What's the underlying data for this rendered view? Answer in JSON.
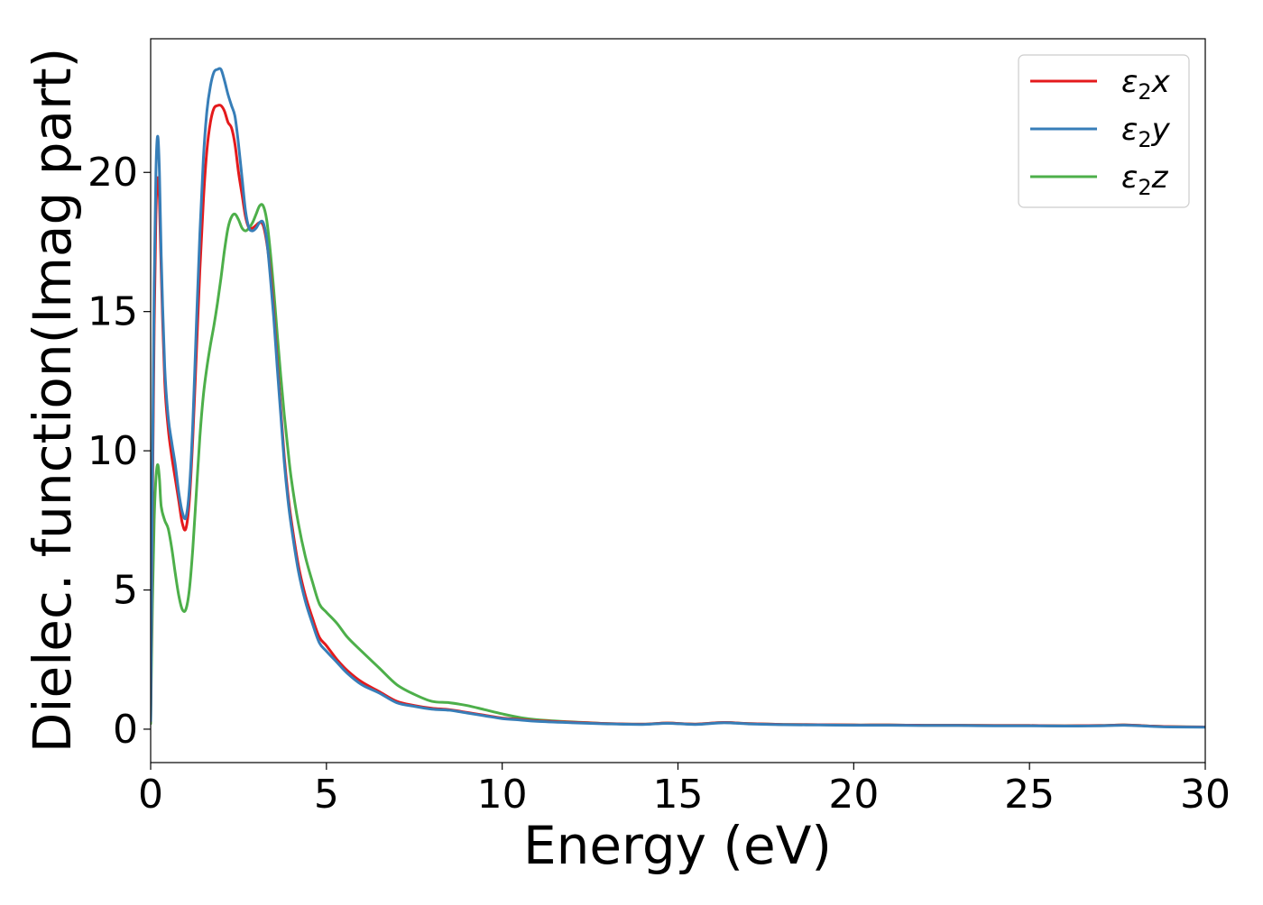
{
  "chart_data": {
    "type": "line",
    "title": "",
    "xlabel": "Energy (eV)",
    "ylabel": "Dielec. function(Imag part)",
    "xlim": [
      0,
      30
    ],
    "ylim": [
      -1.2,
      24.8
    ],
    "xticks": [
      0,
      5,
      10,
      15,
      20,
      25,
      30
    ],
    "yticks": [
      0,
      5,
      10,
      15,
      20
    ],
    "xtick_labels": [
      "0",
      "5",
      "10",
      "15",
      "20",
      "25",
      "30"
    ],
    "ytick_labels": [
      "0",
      "5",
      "10",
      "15",
      "20"
    ],
    "grid": false,
    "legend_position": "top-right",
    "series": [
      {
        "name": "ε₂x",
        "legend": {
          "base": "ε",
          "sub": "2",
          "suffix": "x"
        },
        "color": "#e41a1c",
        "x": [
          0,
          0.05,
          0.1,
          0.15,
          0.2,
          0.25,
          0.3,
          0.4,
          0.5,
          0.6,
          0.7,
          0.8,
          0.9,
          1.0,
          1.1,
          1.2,
          1.3,
          1.4,
          1.5,
          1.6,
          1.7,
          1.8,
          1.9,
          2.0,
          2.1,
          2.2,
          2.3,
          2.4,
          2.5,
          2.6,
          2.7,
          2.8,
          2.9,
          3.0,
          3.1,
          3.2,
          3.3,
          3.4,
          3.5,
          3.6,
          3.7,
          3.8,
          3.9,
          4.0,
          4.2,
          4.4,
          4.6,
          4.8,
          5.0,
          5.3,
          5.6,
          6.0,
          6.5,
          7.0,
          7.5,
          8.0,
          8.5,
          9.0,
          9.5,
          10.0,
          10.5,
          11.0,
          12.0,
          13.0,
          14.0,
          14.7,
          15.5,
          16.3,
          17.0,
          18.0,
          19.0,
          20.0,
          21.0,
          22.0,
          23.0,
          24.0,
          25.0,
          26.0,
          27.0,
          27.7,
          28.5,
          29.0,
          30.0
        ],
        "y": [
          0.3,
          8.0,
          14.5,
          18.5,
          19.8,
          19.0,
          16.5,
          12.5,
          10.8,
          9.8,
          9.0,
          8.2,
          7.4,
          7.2,
          8.2,
          10.5,
          13.5,
          16.5,
          19.0,
          20.8,
          21.8,
          22.3,
          22.4,
          22.4,
          22.2,
          21.8,
          21.6,
          21.0,
          20.0,
          19.2,
          18.4,
          18.0,
          18.0,
          18.1,
          18.2,
          18.1,
          17.5,
          16.5,
          15.0,
          13.2,
          11.5,
          9.8,
          8.5,
          7.5,
          5.9,
          4.8,
          4.0,
          3.3,
          3.0,
          2.5,
          2.1,
          1.7,
          1.35,
          1.0,
          0.85,
          0.75,
          0.7,
          0.6,
          0.5,
          0.4,
          0.35,
          0.3,
          0.25,
          0.2,
          0.18,
          0.22,
          0.18,
          0.24,
          0.2,
          0.17,
          0.16,
          0.15,
          0.15,
          0.14,
          0.14,
          0.13,
          0.13,
          0.12,
          0.13,
          0.15,
          0.11,
          0.09,
          0.08
        ]
      },
      {
        "name": "ε₂y",
        "legend": {
          "base": "ε",
          "sub": "2",
          "suffix": "y"
        },
        "color": "#377eb8",
        "x": [
          0,
          0.05,
          0.1,
          0.15,
          0.2,
          0.25,
          0.3,
          0.4,
          0.5,
          0.6,
          0.7,
          0.8,
          0.9,
          1.0,
          1.1,
          1.2,
          1.3,
          1.4,
          1.5,
          1.6,
          1.7,
          1.8,
          1.9,
          2.0,
          2.1,
          2.2,
          2.3,
          2.4,
          2.5,
          2.6,
          2.7,
          2.8,
          2.9,
          3.0,
          3.1,
          3.2,
          3.3,
          3.4,
          3.5,
          3.6,
          3.7,
          3.8,
          3.9,
          4.0,
          4.2,
          4.4,
          4.6,
          4.8,
          5.0,
          5.3,
          5.6,
          6.0,
          6.5,
          7.0,
          7.5,
          8.0,
          8.5,
          9.0,
          9.5,
          10.0,
          10.5,
          11.0,
          12.0,
          13.0,
          14.0,
          14.7,
          15.5,
          16.3,
          17.0,
          18.0,
          19.0,
          20.0,
          21.0,
          22.0,
          23.0,
          24.0,
          25.0,
          26.0,
          27.0,
          27.7,
          28.5,
          29.0,
          30.0
        ],
        "y": [
          0.3,
          9.0,
          16.0,
          20.0,
          21.3,
          20.0,
          17.0,
          13.0,
          11.2,
          10.3,
          9.5,
          8.5,
          7.8,
          7.6,
          8.6,
          11.0,
          14.5,
          17.8,
          20.5,
          22.2,
          23.1,
          23.6,
          23.7,
          23.7,
          23.3,
          22.8,
          22.4,
          22.0,
          21.0,
          19.8,
          18.6,
          18.0,
          17.9,
          18.0,
          18.2,
          18.2,
          17.6,
          16.3,
          14.8,
          13.0,
          11.3,
          9.6,
          8.3,
          7.3,
          5.7,
          4.6,
          3.8,
          3.1,
          2.8,
          2.4,
          2.0,
          1.6,
          1.3,
          0.95,
          0.82,
          0.72,
          0.68,
          0.58,
          0.48,
          0.38,
          0.33,
          0.28,
          0.23,
          0.19,
          0.17,
          0.21,
          0.17,
          0.23,
          0.19,
          0.16,
          0.15,
          0.14,
          0.14,
          0.13,
          0.13,
          0.12,
          0.12,
          0.11,
          0.12,
          0.14,
          0.1,
          0.08,
          0.07
        ]
      },
      {
        "name": "ε₂z",
        "legend": {
          "base": "ε",
          "sub": "2",
          "suffix": "z"
        },
        "color": "#4daf4a",
        "x": [
          0,
          0.05,
          0.1,
          0.15,
          0.2,
          0.25,
          0.3,
          0.4,
          0.5,
          0.6,
          0.7,
          0.8,
          0.9,
          1.0,
          1.1,
          1.2,
          1.3,
          1.4,
          1.5,
          1.6,
          1.7,
          1.8,
          1.9,
          2.0,
          2.1,
          2.2,
          2.3,
          2.4,
          2.5,
          2.6,
          2.7,
          2.8,
          2.9,
          3.0,
          3.1,
          3.2,
          3.3,
          3.4,
          3.5,
          3.6,
          3.7,
          3.8,
          3.9,
          4.0,
          4.2,
          4.4,
          4.6,
          4.8,
          5.0,
          5.3,
          5.6,
          6.0,
          6.5,
          7.0,
          7.5,
          8.0,
          8.5,
          9.0,
          9.5,
          10.0,
          10.5,
          11.0,
          12.0,
          13.0,
          14.0,
          14.7,
          15.5,
          16.3,
          17.0,
          18.0,
          19.0,
          20.0,
          21.0,
          22.0,
          23.0,
          24.0,
          25.0,
          26.0,
          27.0,
          27.7,
          28.5,
          29.0,
          30.0
        ],
        "y": [
          0.2,
          4.5,
          7.5,
          9.0,
          9.5,
          9.0,
          8.0,
          7.5,
          7.2,
          6.5,
          5.6,
          4.8,
          4.3,
          4.3,
          5.0,
          6.5,
          8.5,
          10.5,
          12.0,
          13.0,
          13.8,
          14.5,
          15.3,
          16.2,
          17.2,
          18.0,
          18.4,
          18.5,
          18.3,
          18.0,
          17.9,
          18.0,
          18.2,
          18.5,
          18.8,
          18.8,
          18.3,
          17.2,
          15.8,
          14.2,
          12.7,
          11.3,
          10.1,
          9.0,
          7.4,
          6.2,
          5.3,
          4.5,
          4.2,
          3.8,
          3.3,
          2.8,
          2.2,
          1.6,
          1.25,
          1.0,
          0.95,
          0.85,
          0.7,
          0.55,
          0.42,
          0.34,
          0.26,
          0.2,
          0.18,
          0.22,
          0.18,
          0.24,
          0.2,
          0.17,
          0.16,
          0.15,
          0.15,
          0.14,
          0.14,
          0.13,
          0.13,
          0.12,
          0.13,
          0.15,
          0.11,
          0.09,
          0.08
        ]
      }
    ]
  }
}
